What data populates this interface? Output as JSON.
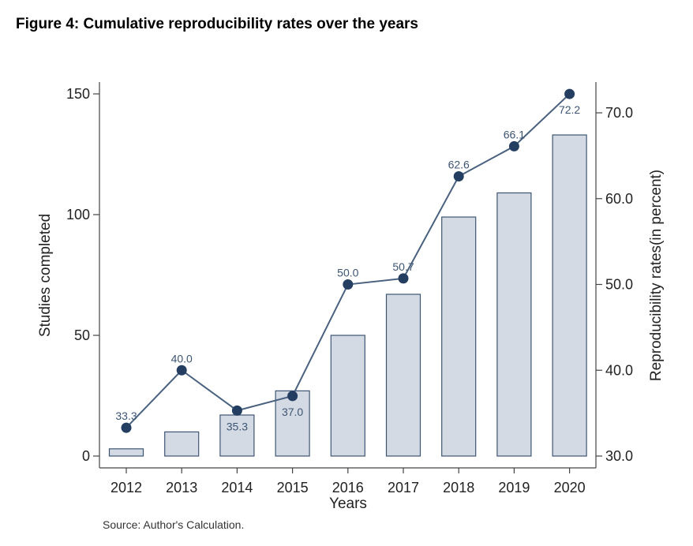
{
  "figure_title": "Figure 4: Cumulative reproducibility rates over the years",
  "source_note": "Source: Author's Calculation.",
  "chart_data": {
    "type": "bar",
    "title": "Figure 4: Cumulative reproducibility rates over the years",
    "xlabel": "Years",
    "ylabel": "Studies completed",
    "y2label": "Reproducibility rates(in percent)",
    "categories": [
      "2012",
      "2013",
      "2014",
      "2015",
      "2016",
      "2017",
      "2018",
      "2019",
      "2020"
    ],
    "ylim": [
      0,
      150
    ],
    "y2lim": [
      30,
      72.2
    ],
    "yticks": [
      0,
      50,
      100,
      150
    ],
    "y2ticks": [
      "30.0",
      "40.0",
      "50.0",
      "60.0",
      "70.0"
    ],
    "grid": false,
    "series": [
      {
        "axis": "left",
        "kind": "bar",
        "color": "#d3dae4",
        "values": [
          3,
          10,
          17,
          27,
          50,
          67,
          99,
          109,
          133
        ]
      },
      {
        "axis": "right",
        "kind": "line",
        "color": "#4a6280",
        "marker_color": "#243e61",
        "values": [
          33.3,
          40.0,
          35.3,
          37.0,
          50.0,
          50.7,
          62.6,
          66.1,
          72.2
        ],
        "labels": [
          "33.3",
          "40.0",
          "35.3",
          "37.0",
          "50.0",
          "50.7",
          "62.6",
          "66.1",
          "72.2"
        ]
      }
    ]
  }
}
